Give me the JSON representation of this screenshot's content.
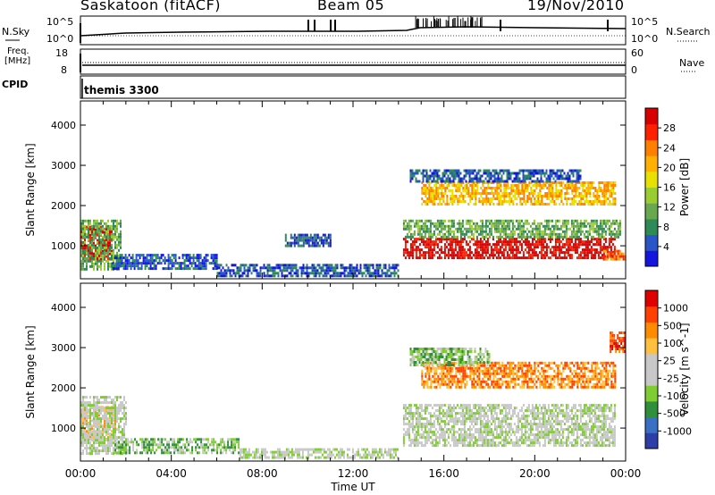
{
  "header": {
    "station": "Saskatoon (fitACF)",
    "beam": "Beam 05",
    "date": "19/Nov/2010"
  },
  "noise_panel": {
    "left_label": "N.Sky",
    "left_tick_top": "10^5",
    "left_tick_bottom": "10^0",
    "right_label": "N.Search",
    "right_tick_top": "10^5",
    "right_tick_bottom": "10^0"
  },
  "freq_panel": {
    "left_label_1": "Freq.",
    "left_label_2": "[MHz]",
    "left_tick_top": "18",
    "left_tick_bottom": "8",
    "right_label": "Nave",
    "right_tick_top": "60",
    "right_tick_bottom": "0"
  },
  "cpid_panel": {
    "label": "CPID",
    "value": "themis 3300"
  },
  "chart_data": [
    {
      "type": "heatmap",
      "title": "Power",
      "ylabel": "Slant Range [km]",
      "xlabel": "Time UT",
      "yticks": [
        "1000",
        "2000",
        "3000",
        "4000"
      ],
      "ylim": [
        180,
        4600
      ],
      "xlim_hours": [
        0,
        24
      ],
      "colorbar_label": "Power [dB]",
      "colorbar_ticks": [
        "4",
        "8",
        "12",
        "16",
        "20",
        "24",
        "28"
      ],
      "colorbar_colors": [
        "#1515e0",
        "#2a55c8",
        "#2e8b57",
        "#6aa84f",
        "#9acd32",
        "#e8e000",
        "#ffb000",
        "#ff7f00",
        "#ff2000",
        "#d80000"
      ],
      "regions": [
        {
          "t0": 0.0,
          "t1": 1.4,
          "r0": 650,
          "r1": 1500,
          "level": 9
        },
        {
          "t0": 0.0,
          "t1": 1.8,
          "r0": 400,
          "r1": 1650,
          "level": 3
        },
        {
          "t0": 1.4,
          "t1": 6.0,
          "r0": 450,
          "r1": 800,
          "level": 1
        },
        {
          "t0": 6.0,
          "t1": 14.0,
          "r0": 250,
          "r1": 550,
          "level": 1
        },
        {
          "t0": 9.0,
          "t1": 11.0,
          "r0": 1000,
          "r1": 1300,
          "level": 1
        },
        {
          "t0": 14.2,
          "t1": 23.5,
          "r0": 700,
          "r1": 1200,
          "level": 9
        },
        {
          "t0": 14.2,
          "t1": 23.8,
          "r0": 1200,
          "r1": 1650,
          "level": 3
        },
        {
          "t0": 15.0,
          "t1": 23.5,
          "r0": 2050,
          "r1": 2600,
          "level": 6
        },
        {
          "t0": 14.5,
          "t1": 22.0,
          "r0": 2600,
          "r1": 2900,
          "level": 1
        },
        {
          "t0": 23.0,
          "t1": 24.0,
          "r0": 650,
          "r1": 900,
          "level": 7
        }
      ]
    },
    {
      "type": "heatmap",
      "title": "Velocity",
      "ylabel": "Slant Range [km]",
      "xlabel": "Time UT",
      "yticks": [
        "1000",
        "2000",
        "3000",
        "4000"
      ],
      "ylim": [
        180,
        4600
      ],
      "xlim_hours": [
        0,
        24
      ],
      "colorbar_label": "Velocity [m s^-1]",
      "colorbar_ticks": [
        "1000",
        "500",
        "100",
        "25",
        "-25",
        "-100",
        "-500",
        "-1000"
      ],
      "colorbar_colors": [
        "#2d3ea8",
        "#3a6fc4",
        "#2f8f3a",
        "#7fcc33",
        "#c8c8c8",
        "#c8c8c8",
        "#ffbf3f",
        "#ff8c00",
        "#ff4000",
        "#e00000"
      ],
      "regions": [
        {
          "t0": 0.0,
          "t1": 1.5,
          "r0": 700,
          "r1": 1550,
          "level": 6
        },
        {
          "t0": 0.0,
          "t1": 2.0,
          "r0": 350,
          "r1": 1800,
          "level": 4
        },
        {
          "t0": 1.5,
          "t1": 7.0,
          "r0": 400,
          "r1": 750,
          "level": 3
        },
        {
          "t0": 7.0,
          "t1": 14.0,
          "r0": 250,
          "r1": 500,
          "level": 4
        },
        {
          "t0": 14.2,
          "t1": 23.5,
          "r0": 600,
          "r1": 1600,
          "level": 4
        },
        {
          "t0": 15.0,
          "t1": 23.5,
          "r0": 2050,
          "r1": 2650,
          "level": 7
        },
        {
          "t0": 14.5,
          "t1": 18.0,
          "r0": 2600,
          "r1": 3000,
          "level": 3
        },
        {
          "t0": 23.3,
          "t1": 24.0,
          "r0": 2900,
          "r1": 3400,
          "level": 8
        }
      ]
    }
  ],
  "time_axis": {
    "ticks": [
      "00:00",
      "04:00",
      "08:00",
      "12:00",
      "16:00",
      "20:00",
      "00:00"
    ],
    "label": "Time UT"
  }
}
